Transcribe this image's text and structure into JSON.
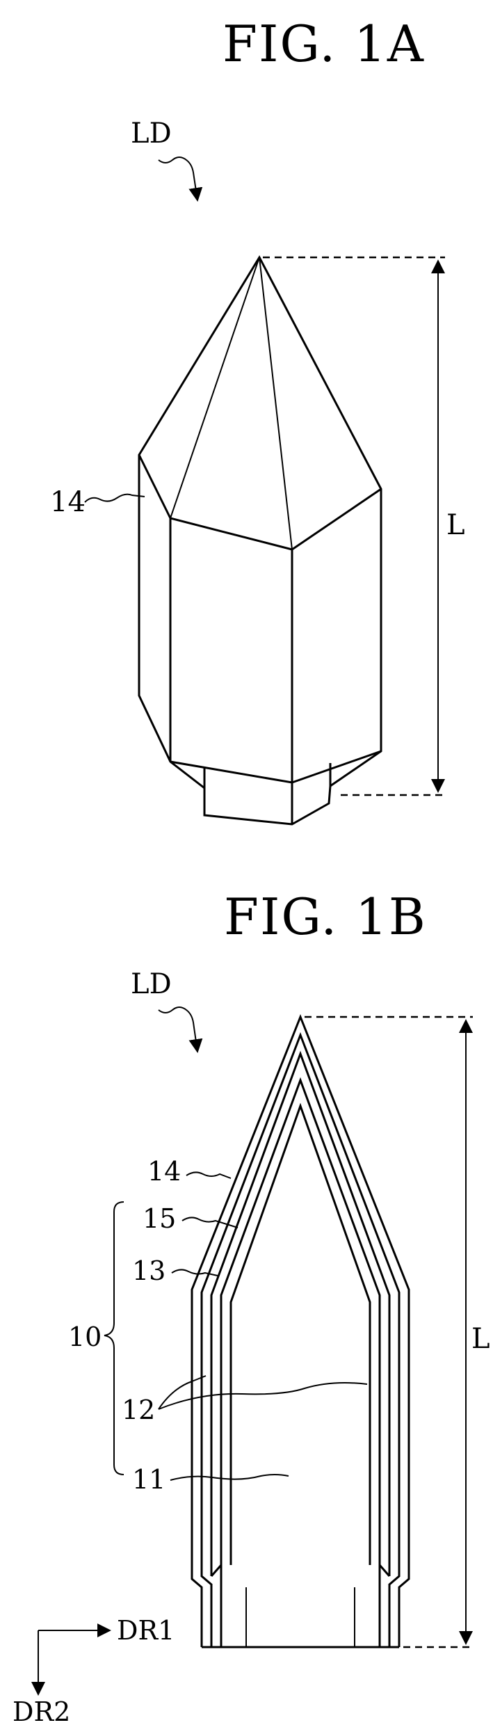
{
  "figure_a": {
    "title": "FIG. 1A",
    "ld_label": "LD",
    "length_label": "L",
    "part_labels": {
      "p14": "14"
    }
  },
  "figure_b": {
    "title": "FIG. 1B",
    "ld_label": "LD",
    "length_label": "L",
    "part_labels": {
      "p14": "14",
      "p15": "15",
      "p13": "13",
      "p10": "10",
      "p12": "12",
      "p11": "11"
    },
    "axes": {
      "dr1": "DR1",
      "dr2": "DR2"
    }
  }
}
